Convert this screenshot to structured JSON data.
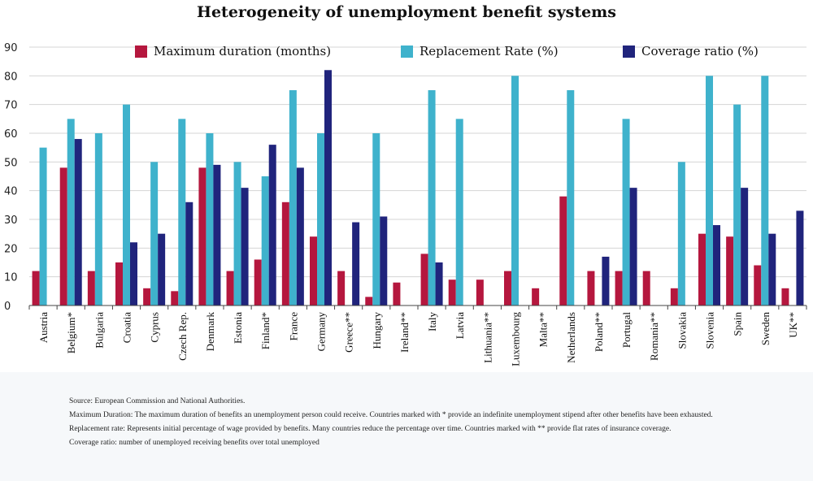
{
  "chart_data": {
    "type": "bar",
    "title": "Heterogeneity of unemployment benefit systems",
    "ylim": [
      0,
      90
    ],
    "yticks": [
      0,
      10,
      20,
      30,
      40,
      50,
      60,
      70,
      80,
      90
    ],
    "grid": true,
    "legend_position": "top",
    "categories": [
      "Austria",
      "Belgium*",
      "Bulgaria",
      "Croatia",
      "Cyprus",
      "Czech Rep.",
      "Denmark",
      "Estonia",
      "Finland*",
      "France",
      "Germany",
      "Greece**",
      "Hungary",
      "Ireland**",
      "Italy",
      "Latvia",
      "Lithuania**",
      "Luxembourg",
      "Malta**",
      "Netherlands",
      "Poland**",
      "Portugal",
      "Romania**",
      "Slovakia",
      "Slovenia",
      "Spain",
      "Sweden",
      "UK**"
    ],
    "series": [
      {
        "name": "Maximum duration (months)",
        "color": "#b5173e",
        "values": [
          12,
          48,
          12,
          15,
          6,
          5,
          48,
          12,
          16,
          36,
          24,
          12,
          3,
          8,
          18,
          9,
          9,
          12,
          6,
          38,
          12,
          12,
          12,
          6,
          25,
          24,
          14,
          6
        ]
      },
      {
        "name": "Replacement Rate (%)",
        "color": "#3fb2cc",
        "values": [
          55,
          65,
          60,
          70,
          50,
          65,
          60,
          50,
          45,
          75,
          60,
          null,
          60,
          null,
          75,
          65,
          null,
          80,
          null,
          75,
          null,
          65,
          null,
          50,
          80,
          70,
          80,
          null
        ]
      },
      {
        "name": "Coverage ratio (%)",
        "color": "#20247c",
        "values": [
          null,
          58,
          null,
          22,
          25,
          36,
          49,
          41,
          56,
          48,
          82,
          29,
          31,
          null,
          15,
          null,
          null,
          null,
          null,
          null,
          17,
          41,
          null,
          null,
          28,
          41,
          25,
          33
        ]
      }
    ]
  },
  "notes": [
    "Source: European Commission and National Authorities.",
    "Maximum Duration: The maximum duration of benefits an unemployment person could receive. Countries marked with * provide an indefinite unemployment stipend after other benefits have been exhausted.",
    "Replacement rate: Represents initial percentage of wage provided by benefits. Many countries reduce the percentage over time. Countries marked with ** provide flat rates of insurance coverage.",
    "Coverage ratio: number of unemployed receiving benefits over total unemployed"
  ]
}
